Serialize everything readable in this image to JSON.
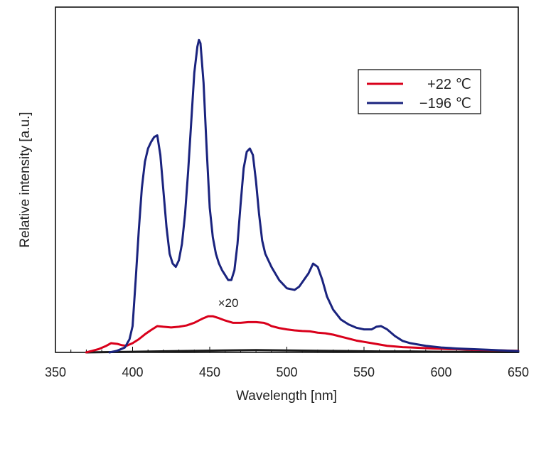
{
  "chart_data": {
    "type": "line",
    "title": "",
    "xlabel": "Wavelength [nm]",
    "ylabel": "Relative intensity [a.u.]",
    "xlim": [
      350,
      650
    ],
    "ylim": [
      0,
      1.05
    ],
    "xticks": [
      350,
      400,
      450,
      500,
      550,
      600,
      650
    ],
    "grid": false,
    "legend_position": "top-right",
    "annotation": {
      "text": "×20",
      "x": 462,
      "y": 0.138
    },
    "series": [
      {
        "name": "+22 ℃",
        "color": "#d9001b",
        "x": [
          370,
          378,
          383,
          386,
          390,
          393,
          396,
          400,
          404,
          408,
          412,
          416,
          420,
          425,
          430,
          435,
          440,
          445,
          449,
          452,
          456,
          460,
          465,
          470,
          475,
          480,
          485,
          488,
          490,
          495,
          500,
          505,
          510,
          515,
          520,
          525,
          530,
          535,
          540,
          545,
          550,
          555,
          560,
          565,
          570,
          575,
          580,
          585,
          590,
          595,
          600,
          605,
          610,
          615,
          620,
          630,
          640,
          650
        ],
        "y": [
          0.0,
          0.01,
          0.02,
          0.028,
          0.026,
          0.022,
          0.02,
          0.028,
          0.04,
          0.055,
          0.068,
          0.08,
          0.078,
          0.076,
          0.078,
          0.082,
          0.09,
          0.102,
          0.11,
          0.11,
          0.104,
          0.097,
          0.09,
          0.09,
          0.092,
          0.092,
          0.09,
          0.085,
          0.08,
          0.074,
          0.07,
          0.067,
          0.065,
          0.064,
          0.06,
          0.058,
          0.054,
          0.048,
          0.042,
          0.036,
          0.032,
          0.028,
          0.024,
          0.02,
          0.018,
          0.016,
          0.015,
          0.014,
          0.013,
          0.012,
          0.011,
          0.01,
          0.01,
          0.009,
          0.008,
          0.007,
          0.006,
          0.005
        ]
      },
      {
        "name": "−196 ℃",
        "color": "#1a237e",
        "x": [
          385,
          390,
          395,
          398,
          400,
          402,
          404,
          406,
          408,
          410,
          412,
          414,
          416,
          418,
          420,
          422,
          424,
          426,
          428,
          430,
          432,
          434,
          436,
          438,
          440,
          442,
          443,
          444,
          446,
          448,
          450,
          452,
          454,
          456,
          458,
          460,
          462,
          464,
          466,
          468,
          470,
          472,
          474,
          476,
          478,
          480,
          482,
          484,
          486,
          488,
          490,
          495,
          500,
          505,
          508,
          511,
          514,
          517,
          520,
          523,
          526,
          530,
          535,
          540,
          545,
          550,
          555,
          558,
          561,
          565,
          570,
          575,
          580,
          590,
          600,
          610,
          620,
          630,
          640,
          650
        ],
        "y": [
          0.0,
          0.005,
          0.015,
          0.04,
          0.08,
          0.22,
          0.37,
          0.5,
          0.58,
          0.62,
          0.64,
          0.655,
          0.66,
          0.6,
          0.49,
          0.38,
          0.3,
          0.27,
          0.26,
          0.28,
          0.33,
          0.42,
          0.55,
          0.7,
          0.85,
          0.93,
          0.95,
          0.94,
          0.82,
          0.62,
          0.44,
          0.35,
          0.3,
          0.27,
          0.25,
          0.235,
          0.22,
          0.22,
          0.25,
          0.33,
          0.45,
          0.56,
          0.61,
          0.62,
          0.6,
          0.52,
          0.42,
          0.34,
          0.3,
          0.28,
          0.26,
          0.22,
          0.195,
          0.19,
          0.2,
          0.22,
          0.24,
          0.27,
          0.26,
          0.22,
          0.17,
          0.13,
          0.1,
          0.085,
          0.075,
          0.07,
          0.07,
          0.078,
          0.08,
          0.07,
          0.05,
          0.035,
          0.028,
          0.02,
          0.015,
          0.012,
          0.01,
          0.008,
          0.006,
          0.004
        ]
      },
      {
        "color": "#1a1a1a",
        "x": [
          370,
          400,
          430,
          460,
          480,
          500,
          520,
          540,
          560,
          580,
          600,
          620,
          640,
          650
        ],
        "y": [
          0.0,
          0.002,
          0.004,
          0.006,
          0.007,
          0.006,
          0.005,
          0.004,
          0.003,
          0.003,
          0.002,
          0.002,
          0.001,
          0.001
        ]
      }
    ]
  }
}
